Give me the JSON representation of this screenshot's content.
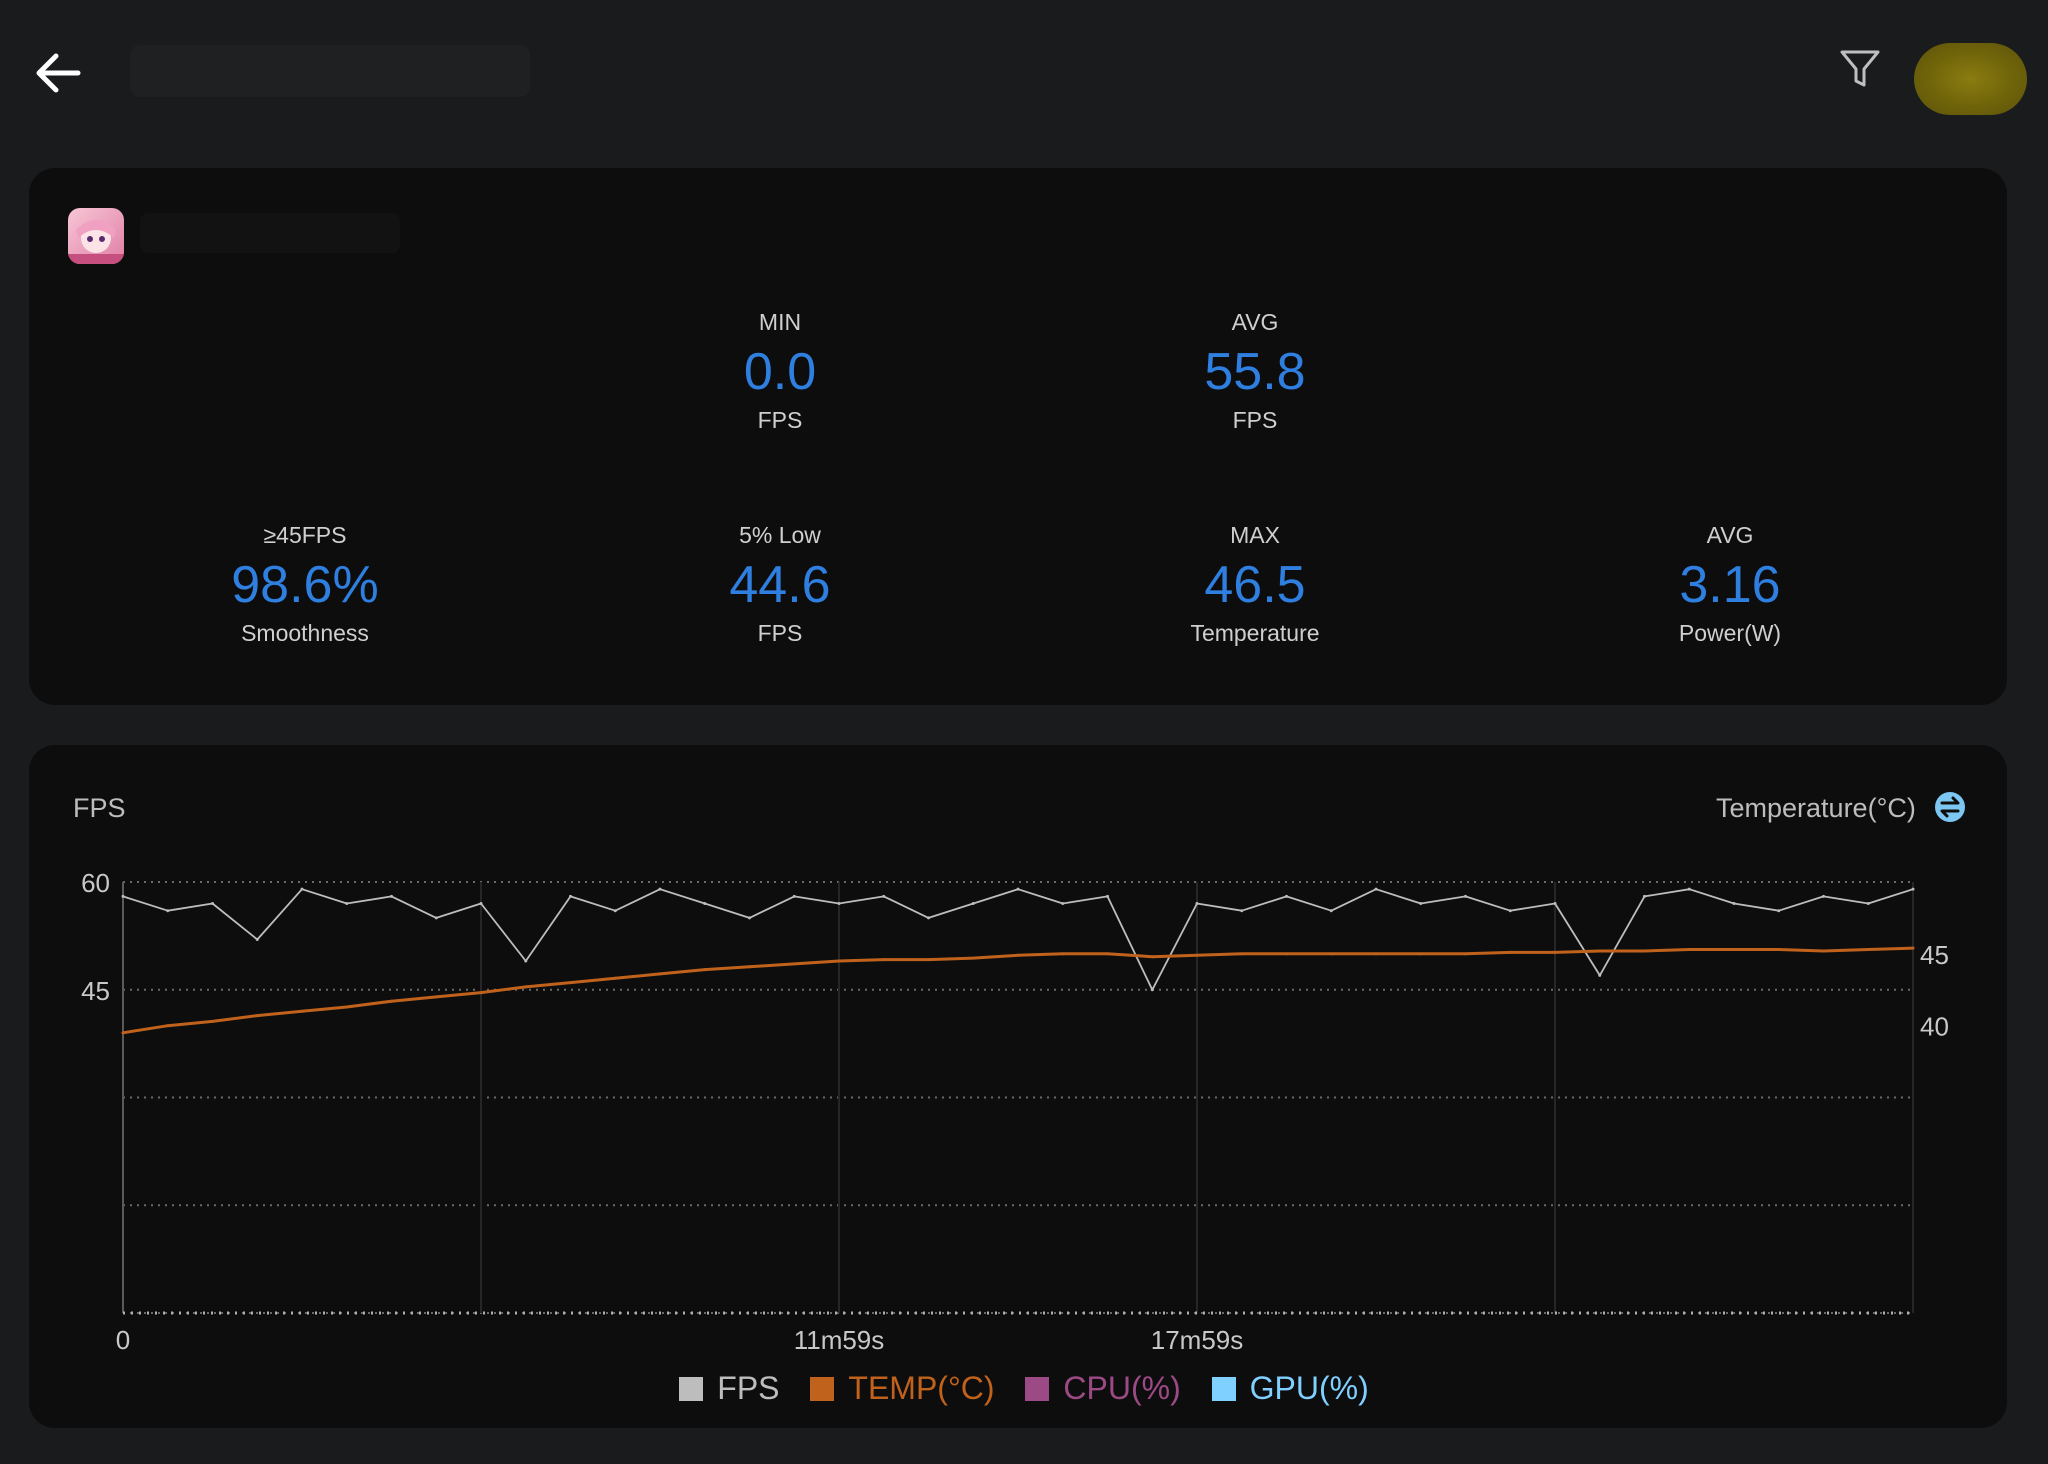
{
  "summary": {
    "stats": [
      {
        "label": "MIN",
        "value": "0.0",
        "unit": "FPS"
      },
      {
        "label": "AVG",
        "value": "55.8",
        "unit": "FPS"
      },
      {
        "label": "≥45FPS",
        "value": "98.6%",
        "unit": "Smoothness"
      },
      {
        "label": "5% Low",
        "value": "44.6",
        "unit": "FPS"
      },
      {
        "label": "MAX",
        "value": "46.5",
        "unit": "Temperature"
      },
      {
        "label": "AVG",
        "value": "3.16",
        "unit": "Power(W)"
      }
    ]
  },
  "chart": {
    "left_axis_title": "FPS",
    "right_axis_title": "Temperature(°C)",
    "legend": [
      {
        "label": "FPS",
        "color": "#bdbdbd"
      },
      {
        "label": "TEMP(°C)",
        "color": "#c0621b"
      },
      {
        "label": "CPU(%)",
        "color": "#9b4a86"
      },
      {
        "label": "GPU(%)",
        "color": "#7fd0ff"
      }
    ]
  },
  "chart_data": {
    "type": "line",
    "x_ticks": [
      "0",
      "11m59s",
      "17m59s"
    ],
    "y_left": {
      "label": "FPS",
      "ticks": [
        60,
        45
      ],
      "range": [
        0,
        60
      ]
    },
    "y_right": {
      "label": "Temperature(°C)",
      "ticks": [
        45,
        40
      ],
      "range": [
        20,
        50
      ]
    },
    "grid": true,
    "legend_position": "bottom",
    "series": [
      {
        "name": "FPS",
        "axis": "left",
        "color": "#bdbdbd",
        "x": [
          0,
          1,
          2,
          3,
          4,
          5,
          6,
          7,
          8,
          9,
          10,
          11,
          12,
          13,
          14,
          15,
          16,
          17,
          18,
          19,
          20,
          21,
          22,
          23,
          24,
          25,
          26,
          27,
          28,
          29,
          30,
          31,
          32,
          33,
          34,
          35,
          36,
          37,
          38,
          39,
          40
        ],
        "y": [
          58,
          56,
          57,
          52,
          59,
          57,
          58,
          55,
          57,
          49,
          58,
          56,
          59,
          57,
          55,
          58,
          57,
          58,
          55,
          57,
          59,
          57,
          58,
          45,
          57,
          56,
          58,
          56,
          59,
          57,
          58,
          56,
          57,
          47,
          58,
          59,
          57,
          56,
          58,
          57,
          59
        ]
      },
      {
        "name": "TEMP(°C)",
        "axis": "right",
        "color": "#c0621b",
        "x": [
          0,
          1,
          2,
          3,
          4,
          5,
          6,
          7,
          8,
          9,
          10,
          11,
          12,
          13,
          14,
          15,
          16,
          17,
          18,
          19,
          20,
          21,
          22,
          23,
          24,
          25,
          26,
          27,
          28,
          29,
          30,
          31,
          32,
          33,
          34,
          35,
          36,
          37,
          38,
          39,
          40
        ],
        "y": [
          39.5,
          40,
          40.3,
          40.7,
          41,
          41.3,
          41.7,
          42,
          42.3,
          42.7,
          43,
          43.3,
          43.6,
          43.9,
          44.1,
          44.3,
          44.5,
          44.6,
          44.6,
          44.7,
          44.9,
          45,
          45,
          44.8,
          44.9,
          45,
          45,
          45,
          45,
          45,
          45,
          45.1,
          45.1,
          45.2,
          45.2,
          45.3,
          45.3,
          45.3,
          45.2,
          45.3,
          45.4
        ]
      }
    ]
  }
}
